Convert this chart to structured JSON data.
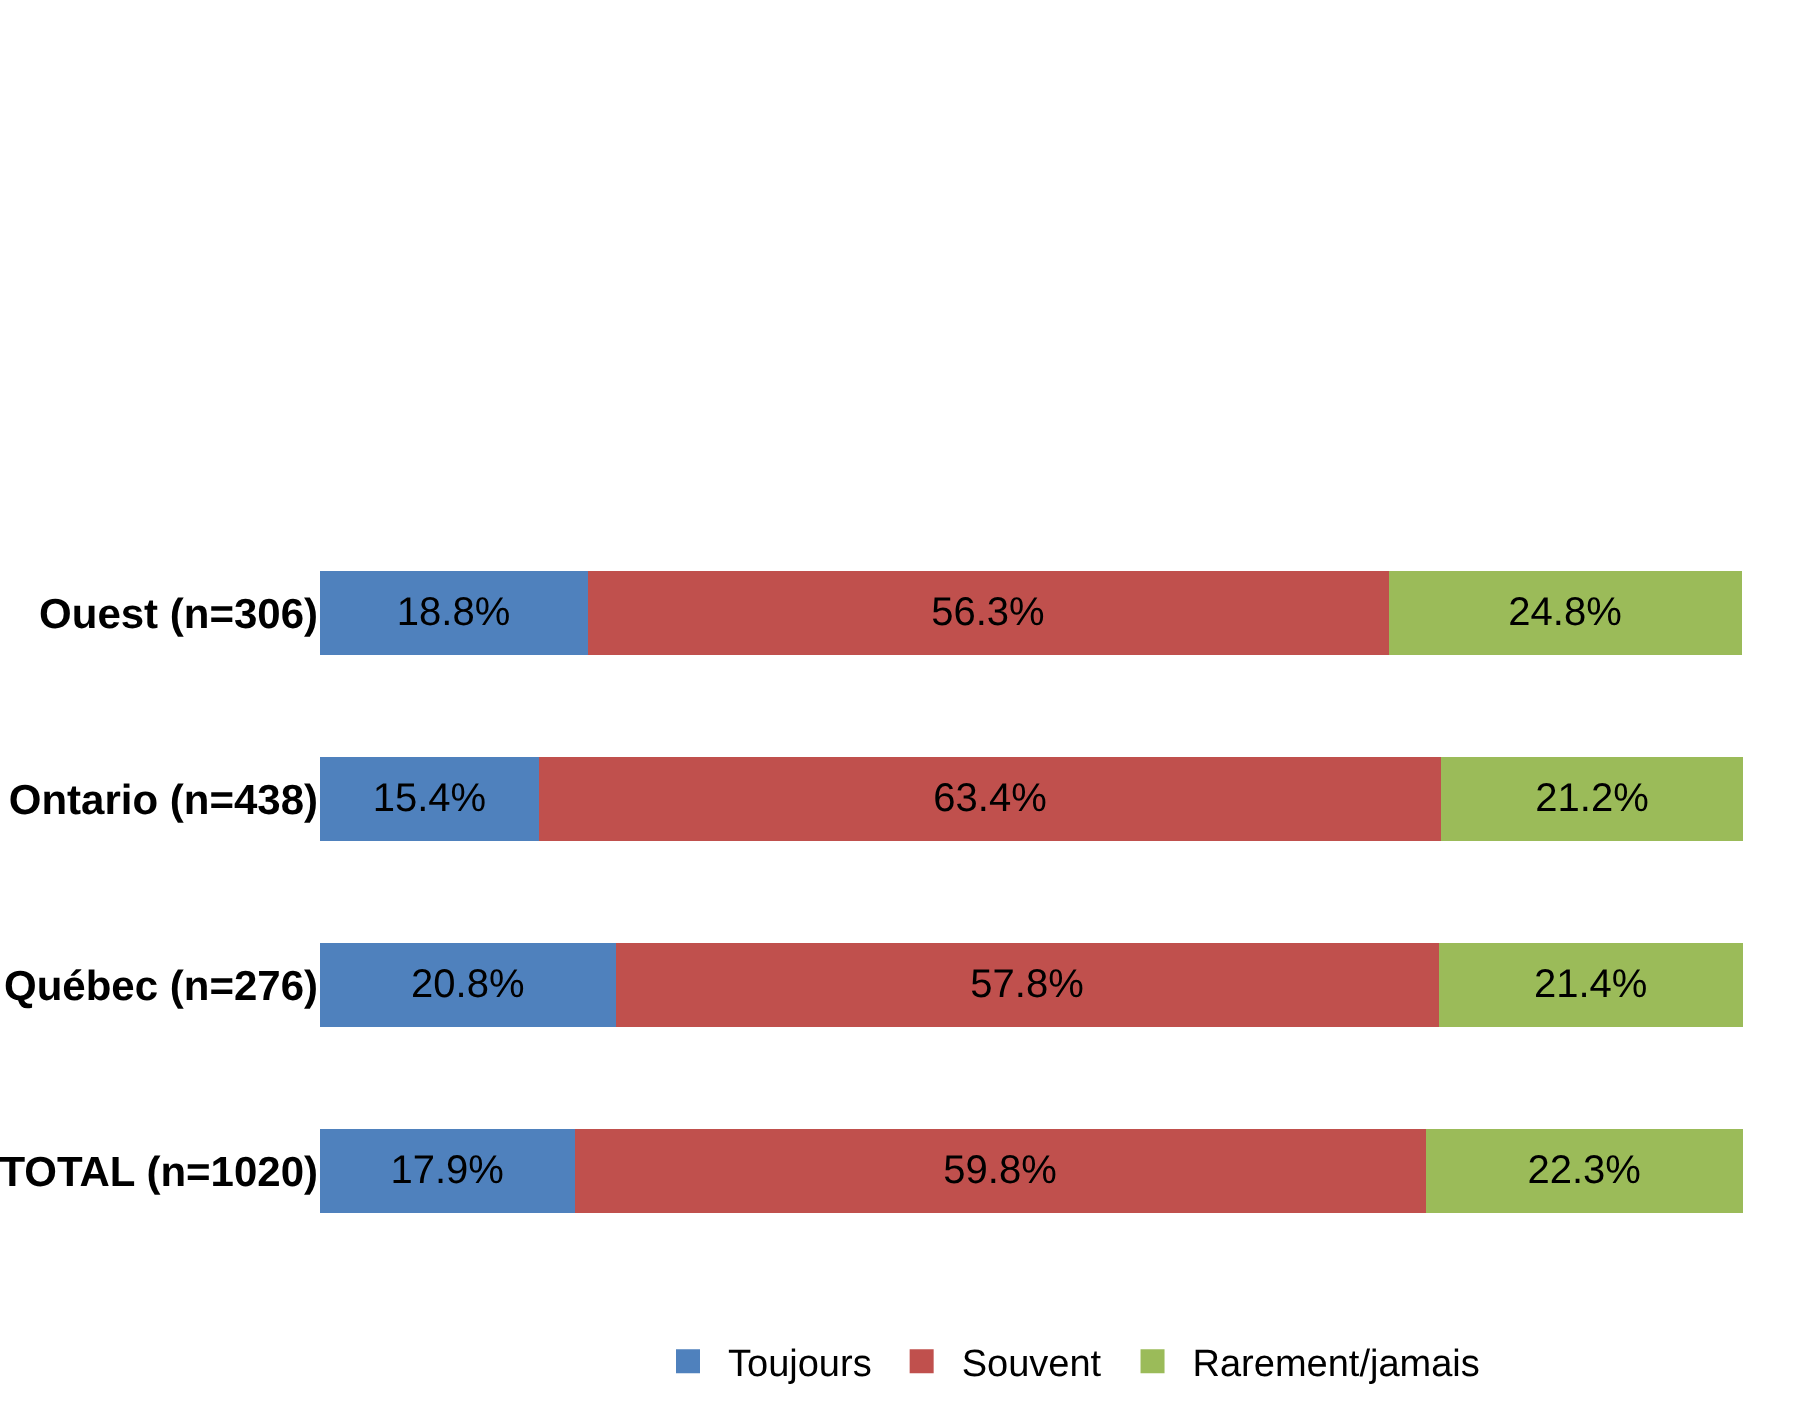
{
  "chart_data": {
    "type": "bar",
    "orientation": "horizontal",
    "stacked": true,
    "legend": "bottom",
    "tick_labels": "y",
    "categories": [
      "Ouest (n=306)",
      "Ontario (n=438)",
      "Québec (n=276)",
      "TOTAL (n=1020)"
    ],
    "series": [
      {
        "name": "Toujours",
        "color": "#4f81bd",
        "values": [
          18.8,
          15.4,
          20.8,
          17.9
        ],
        "value_labels": [
          "18.8%",
          "15.4%",
          "20.8%",
          "17.9%"
        ]
      },
      {
        "name": "Souvent",
        "color": "#c0504d",
        "values": [
          56.3,
          63.4,
          57.8,
          59.8
        ],
        "value_labels": [
          "56.3%",
          "63.4%",
          "57.8%",
          "59.8%"
        ]
      },
      {
        "name": "Rarement/jamais",
        "color": "#9bbb59",
        "values": [
          24.8,
          21.2,
          21.4,
          22.3
        ],
        "value_labels": [
          "24.8%",
          "21.2%",
          "21.4%",
          "22.3%"
        ]
      }
    ]
  }
}
